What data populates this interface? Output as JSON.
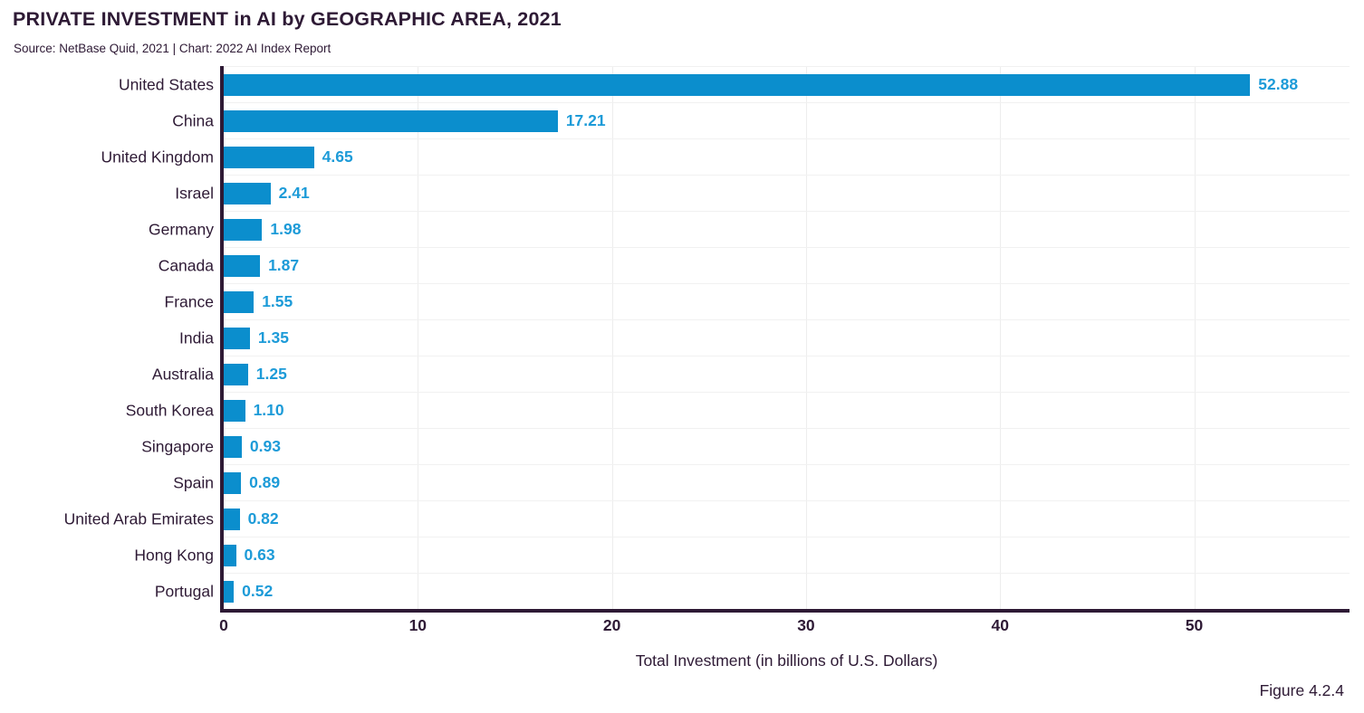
{
  "header": {
    "title": "PRIVATE INVESTMENT in AI by GEOGRAPHIC AREA, 2021",
    "source_line": "Source: NetBase Quid, 2021 | Chart: 2022 AI Index Report"
  },
  "figure_label": "Figure 4.2.4",
  "colors": {
    "bar": "#0b8ecd",
    "value_label": "#1d9bd8",
    "text_dark": "#2e1a35",
    "axis": "#2e1a35",
    "gridline_h": "#f1f1f1",
    "gridline_v": "#ededed"
  },
  "chart_data": {
    "type": "bar",
    "orientation": "horizontal",
    "title": "PRIVATE INVESTMENT in AI by GEOGRAPHIC AREA, 2021",
    "subtitle": "Source: NetBase Quid, 2021 | Chart: 2022 AI Index Report",
    "categories": [
      "United States",
      "China",
      "United Kingdom",
      "Israel",
      "Germany",
      "Canada",
      "France",
      "India",
      "Australia",
      "South Korea",
      "Singapore",
      "Spain",
      "United Arab Emirates",
      "Hong Kong",
      "Portugal"
    ],
    "values": [
      52.88,
      17.21,
      4.65,
      2.41,
      1.98,
      1.87,
      1.55,
      1.35,
      1.25,
      1.1,
      0.93,
      0.89,
      0.82,
      0.63,
      0.52
    ],
    "value_labels": [
      "52.88",
      "17.21",
      "4.65",
      "2.41",
      "1.98",
      "1.87",
      "1.55",
      "1.35",
      "1.25",
      "1.10",
      "0.93",
      "0.89",
      "0.82",
      "0.63",
      "0.52"
    ],
    "xlabel": "Total Investment (in billions of U.S. Dollars)",
    "xlim": [
      0,
      58
    ],
    "xticks": [
      0,
      10,
      20,
      30,
      40,
      50
    ],
    "grid": true,
    "legend": "none",
    "bar_color": "#0b8ecd"
  }
}
